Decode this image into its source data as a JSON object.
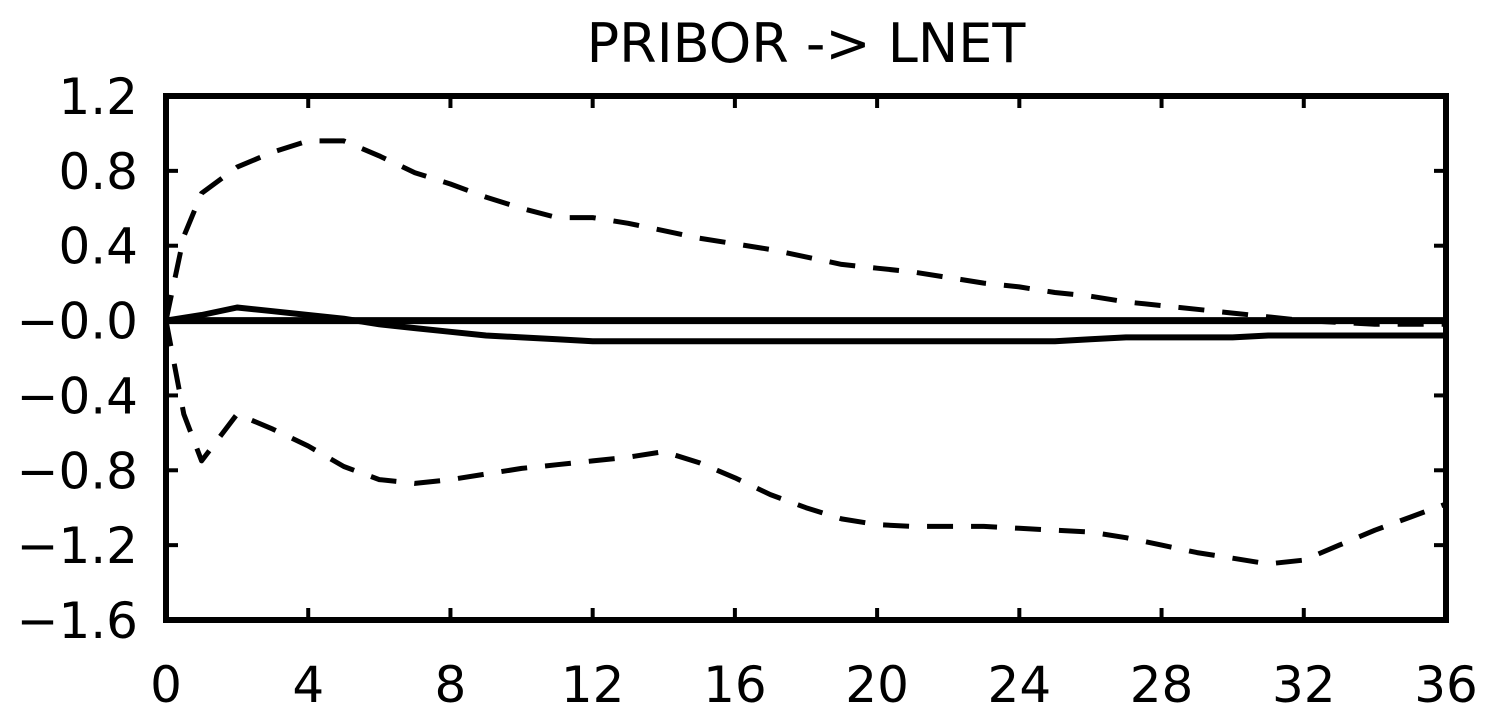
{
  "chart_data": {
    "type": "line",
    "title": "PRIBOR -> LNET",
    "xlabel": "",
    "ylabel": "",
    "xlim": [
      0,
      36
    ],
    "ylim": [
      -1.6,
      1.2
    ],
    "x_ticks": [
      0,
      4,
      8,
      12,
      16,
      20,
      24,
      28,
      32,
      36
    ],
    "y_ticks": [
      1.2,
      0.8,
      0.4,
      0.0,
      -0.4,
      -0.8,
      -1.2,
      -1.6
    ],
    "y_tick_labels": [
      "1.2",
      "0.8",
      "0.4",
      "−0.0",
      "−0.4",
      "−0.8",
      "−1.2",
      "−1.6"
    ],
    "zero_line": true,
    "grid": false,
    "series": [
      {
        "style": "solid",
        "x": [
          0,
          1,
          2,
          3,
          4,
          5,
          6,
          7,
          8,
          9,
          10,
          11,
          12,
          13,
          14,
          15,
          16,
          17,
          18,
          19,
          20,
          21,
          22,
          23,
          24,
          25,
          26,
          27,
          28,
          29,
          30,
          31,
          32,
          33,
          34,
          35,
          36
        ],
        "values": [
          0.0,
          0.03,
          0.07,
          0.05,
          0.03,
          0.01,
          -0.02,
          -0.04,
          -0.06,
          -0.08,
          -0.09,
          -0.1,
          -0.11,
          -0.11,
          -0.11,
          -0.11,
          -0.11,
          -0.11,
          -0.11,
          -0.11,
          -0.11,
          -0.11,
          -0.11,
          -0.11,
          -0.11,
          -0.11,
          -0.1,
          -0.09,
          -0.09,
          -0.09,
          -0.09,
          -0.08,
          -0.08,
          -0.08,
          -0.08,
          -0.08,
          -0.08
        ]
      },
      {
        "style": "dashed",
        "x": [
          0,
          0.5,
          1,
          2,
          3,
          4,
          5,
          6,
          7,
          8,
          9,
          10,
          11,
          12,
          13,
          14,
          15,
          16,
          17,
          18,
          19,
          20,
          21,
          22,
          23,
          24,
          25,
          26,
          27,
          28,
          29,
          30,
          31,
          32,
          33,
          34,
          35,
          36
        ],
        "values": [
          0.0,
          0.45,
          0.68,
          0.82,
          0.9,
          0.96,
          0.96,
          0.88,
          0.79,
          0.73,
          0.66,
          0.6,
          0.55,
          0.55,
          0.52,
          0.48,
          0.44,
          0.41,
          0.38,
          0.34,
          0.3,
          0.28,
          0.26,
          0.23,
          0.2,
          0.18,
          0.15,
          0.13,
          0.1,
          0.08,
          0.06,
          0.04,
          0.02,
          0.0,
          -0.01,
          -0.02,
          -0.02,
          -0.02
        ]
      },
      {
        "style": "dashed",
        "x": [
          0,
          0.5,
          1,
          2,
          3,
          4,
          5,
          6,
          7,
          8,
          9,
          10,
          11,
          12,
          13,
          14,
          15,
          16,
          17,
          18,
          19,
          20,
          21,
          22,
          23,
          24,
          25,
          26,
          27,
          28,
          29,
          30,
          31,
          32,
          33,
          34,
          35,
          36
        ],
        "values": [
          0.0,
          -0.5,
          -0.75,
          -0.5,
          -0.58,
          -0.67,
          -0.78,
          -0.85,
          -0.87,
          -0.85,
          -0.82,
          -0.79,
          -0.77,
          -0.75,
          -0.73,
          -0.7,
          -0.76,
          -0.84,
          -0.93,
          -1.0,
          -1.06,
          -1.09,
          -1.1,
          -1.1,
          -1.1,
          -1.11,
          -1.12,
          -1.13,
          -1.16,
          -1.2,
          -1.24,
          -1.27,
          -1.3,
          -1.28,
          -1.2,
          -1.12,
          -1.05,
          -0.98
        ]
      }
    ]
  }
}
